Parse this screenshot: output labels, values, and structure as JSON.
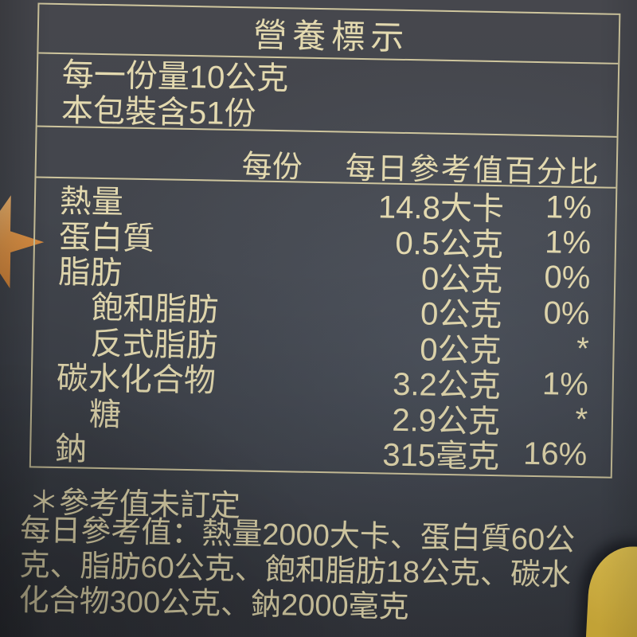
{
  "label": {
    "title": "營養標示",
    "serving_lines": [
      "每一份量10公克",
      "本包裝含51份"
    ],
    "header": {
      "per_serving": "每份",
      "daily_value_pct": "每日參考值百分比"
    },
    "rows": [
      {
        "name": "熱量",
        "amount": "14.8大卡",
        "dv": "1%",
        "indent": false
      },
      {
        "name": "蛋白質",
        "amount": "0.5公克",
        "dv": "1%",
        "indent": false
      },
      {
        "name": "脂肪",
        "amount": "0公克",
        "dv": "0%",
        "indent": false
      },
      {
        "name": "飽和脂肪",
        "amount": "0公克",
        "dv": "0%",
        "indent": true
      },
      {
        "name": "反式脂肪",
        "amount": "0公克",
        "dv": "*",
        "indent": true
      },
      {
        "name": "碳水化合物",
        "amount": "3.2公克",
        "dv": "1%",
        "indent": false
      },
      {
        "name": "糖",
        "amount": "2.9公克",
        "dv": "*",
        "indent": true
      },
      {
        "name": "鈉",
        "amount": "315毫克",
        "dv": "16%",
        "indent": false
      }
    ],
    "footnotes": {
      "undefined_note": "＊參考值未訂定",
      "daily_reference_lines": [
        "每日參考值：熱量2000大卡、蛋白質60公",
        "克、脂肪60公克、飽和脂肪18公克、碳水",
        "化合物300公克、鈉2000毫克"
      ]
    }
  },
  "colors": {
    "label_bg": "#40444c",
    "text": "#e3d9af",
    "border": "#cfc69e",
    "corner_yellow": "#ddb83e",
    "star_orange": "#e3984a"
  }
}
